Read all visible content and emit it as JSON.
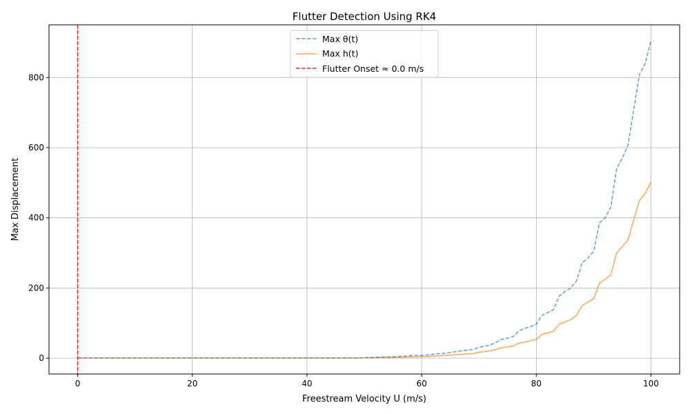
{
  "chart_data": {
    "type": "line",
    "title": "Flutter Detection Using RK4",
    "xlabel": "Freestream Velocity U (m/s)",
    "ylabel": "Max Displacement",
    "xlim": [
      -5,
      105
    ],
    "ylim": [
      -45,
      950
    ],
    "xticks": [
      0,
      20,
      40,
      60,
      80,
      100
    ],
    "yticks": [
      0,
      200,
      400,
      600,
      800
    ],
    "grid": true,
    "legend_position": "top-center",
    "x": [
      0,
      1,
      2,
      3,
      4,
      5,
      6,
      7,
      8,
      9,
      10,
      11,
      12,
      13,
      14,
      15,
      16,
      17,
      18,
      19,
      20,
      21,
      22,
      23,
      24,
      25,
      26,
      27,
      28,
      29,
      30,
      31,
      32,
      33,
      34,
      35,
      36,
      37,
      38,
      39,
      40,
      41,
      42,
      43,
      44,
      45,
      46,
      47,
      48,
      49,
      50,
      51,
      52,
      53,
      54,
      55,
      56,
      57,
      58,
      59,
      60,
      61,
      62,
      63,
      64,
      65,
      66,
      67,
      68,
      69,
      70,
      71,
      72,
      73,
      74,
      75,
      76,
      77,
      78,
      79,
      80,
      81,
      82,
      83,
      84,
      85,
      86,
      87,
      88,
      89,
      90,
      91,
      92,
      93,
      94,
      95,
      96,
      97,
      98,
      99,
      100
    ],
    "series": [
      {
        "name": "Max θ(t)",
        "color": "#1f77b4",
        "style": "dashed",
        "values": [
          1,
          1,
          1,
          1,
          1,
          1,
          1,
          1,
          1,
          1,
          1,
          1,
          1,
          1,
          1,
          1,
          1,
          1,
          1,
          1,
          1,
          1,
          1,
          1,
          1,
          1,
          1,
          1,
          1,
          1,
          1,
          1,
          1,
          1,
          1,
          1,
          1,
          1,
          1,
          1,
          1,
          1,
          1,
          1,
          1,
          1,
          1,
          1,
          1,
          1,
          1.5,
          2,
          2.5,
          3,
          3.5,
          4,
          5,
          6,
          7,
          8,
          8,
          9,
          11,
          13,
          14,
          16,
          19,
          21,
          23,
          25,
          31,
          34,
          38,
          45,
          54,
          57,
          62,
          78,
          85,
          90,
          97,
          123,
          130,
          138,
          177,
          190,
          200,
          220,
          272,
          285,
          305,
          385,
          400,
          430,
          540,
          570,
          607,
          710,
          808,
          840,
          905
        ]
      },
      {
        "name": "Max h(t)",
        "color": "#ff7f0e",
        "style": "solid",
        "values": [
          0.5,
          0.5,
          0.5,
          0.5,
          0.5,
          0.5,
          0.5,
          0.5,
          0.5,
          0.5,
          0.5,
          0.5,
          0.5,
          0.5,
          0.5,
          0.5,
          0.5,
          0.5,
          0.5,
          0.5,
          0.5,
          0.5,
          0.5,
          0.5,
          0.5,
          0.5,
          0.5,
          0.5,
          0.5,
          0.5,
          0.5,
          0.5,
          0.5,
          0.5,
          0.5,
          0.5,
          0.5,
          0.5,
          0.5,
          0.5,
          0.5,
          0.5,
          0.5,
          0.5,
          0.5,
          0.5,
          0.5,
          0.5,
          0.5,
          0.5,
          1,
          1,
          1.5,
          1.5,
          2,
          2,
          2.5,
          3,
          3.5,
          4,
          4.5,
          5,
          6,
          7,
          8,
          8.5,
          10,
          11,
          12,
          13,
          17,
          19,
          21,
          25,
          30,
          32,
          35,
          43,
          46,
          50,
          54,
          68,
          72,
          77,
          97,
          103,
          110,
          122,
          150,
          160,
          170,
          213,
          225,
          238,
          300,
          318,
          337,
          395,
          450,
          470,
          502
        ]
      }
    ],
    "vlines": [
      {
        "name": "Flutter Onset ≈ 0.0 m/s",
        "x": 0,
        "color": "#d62728",
        "style": "dashed"
      }
    ]
  }
}
